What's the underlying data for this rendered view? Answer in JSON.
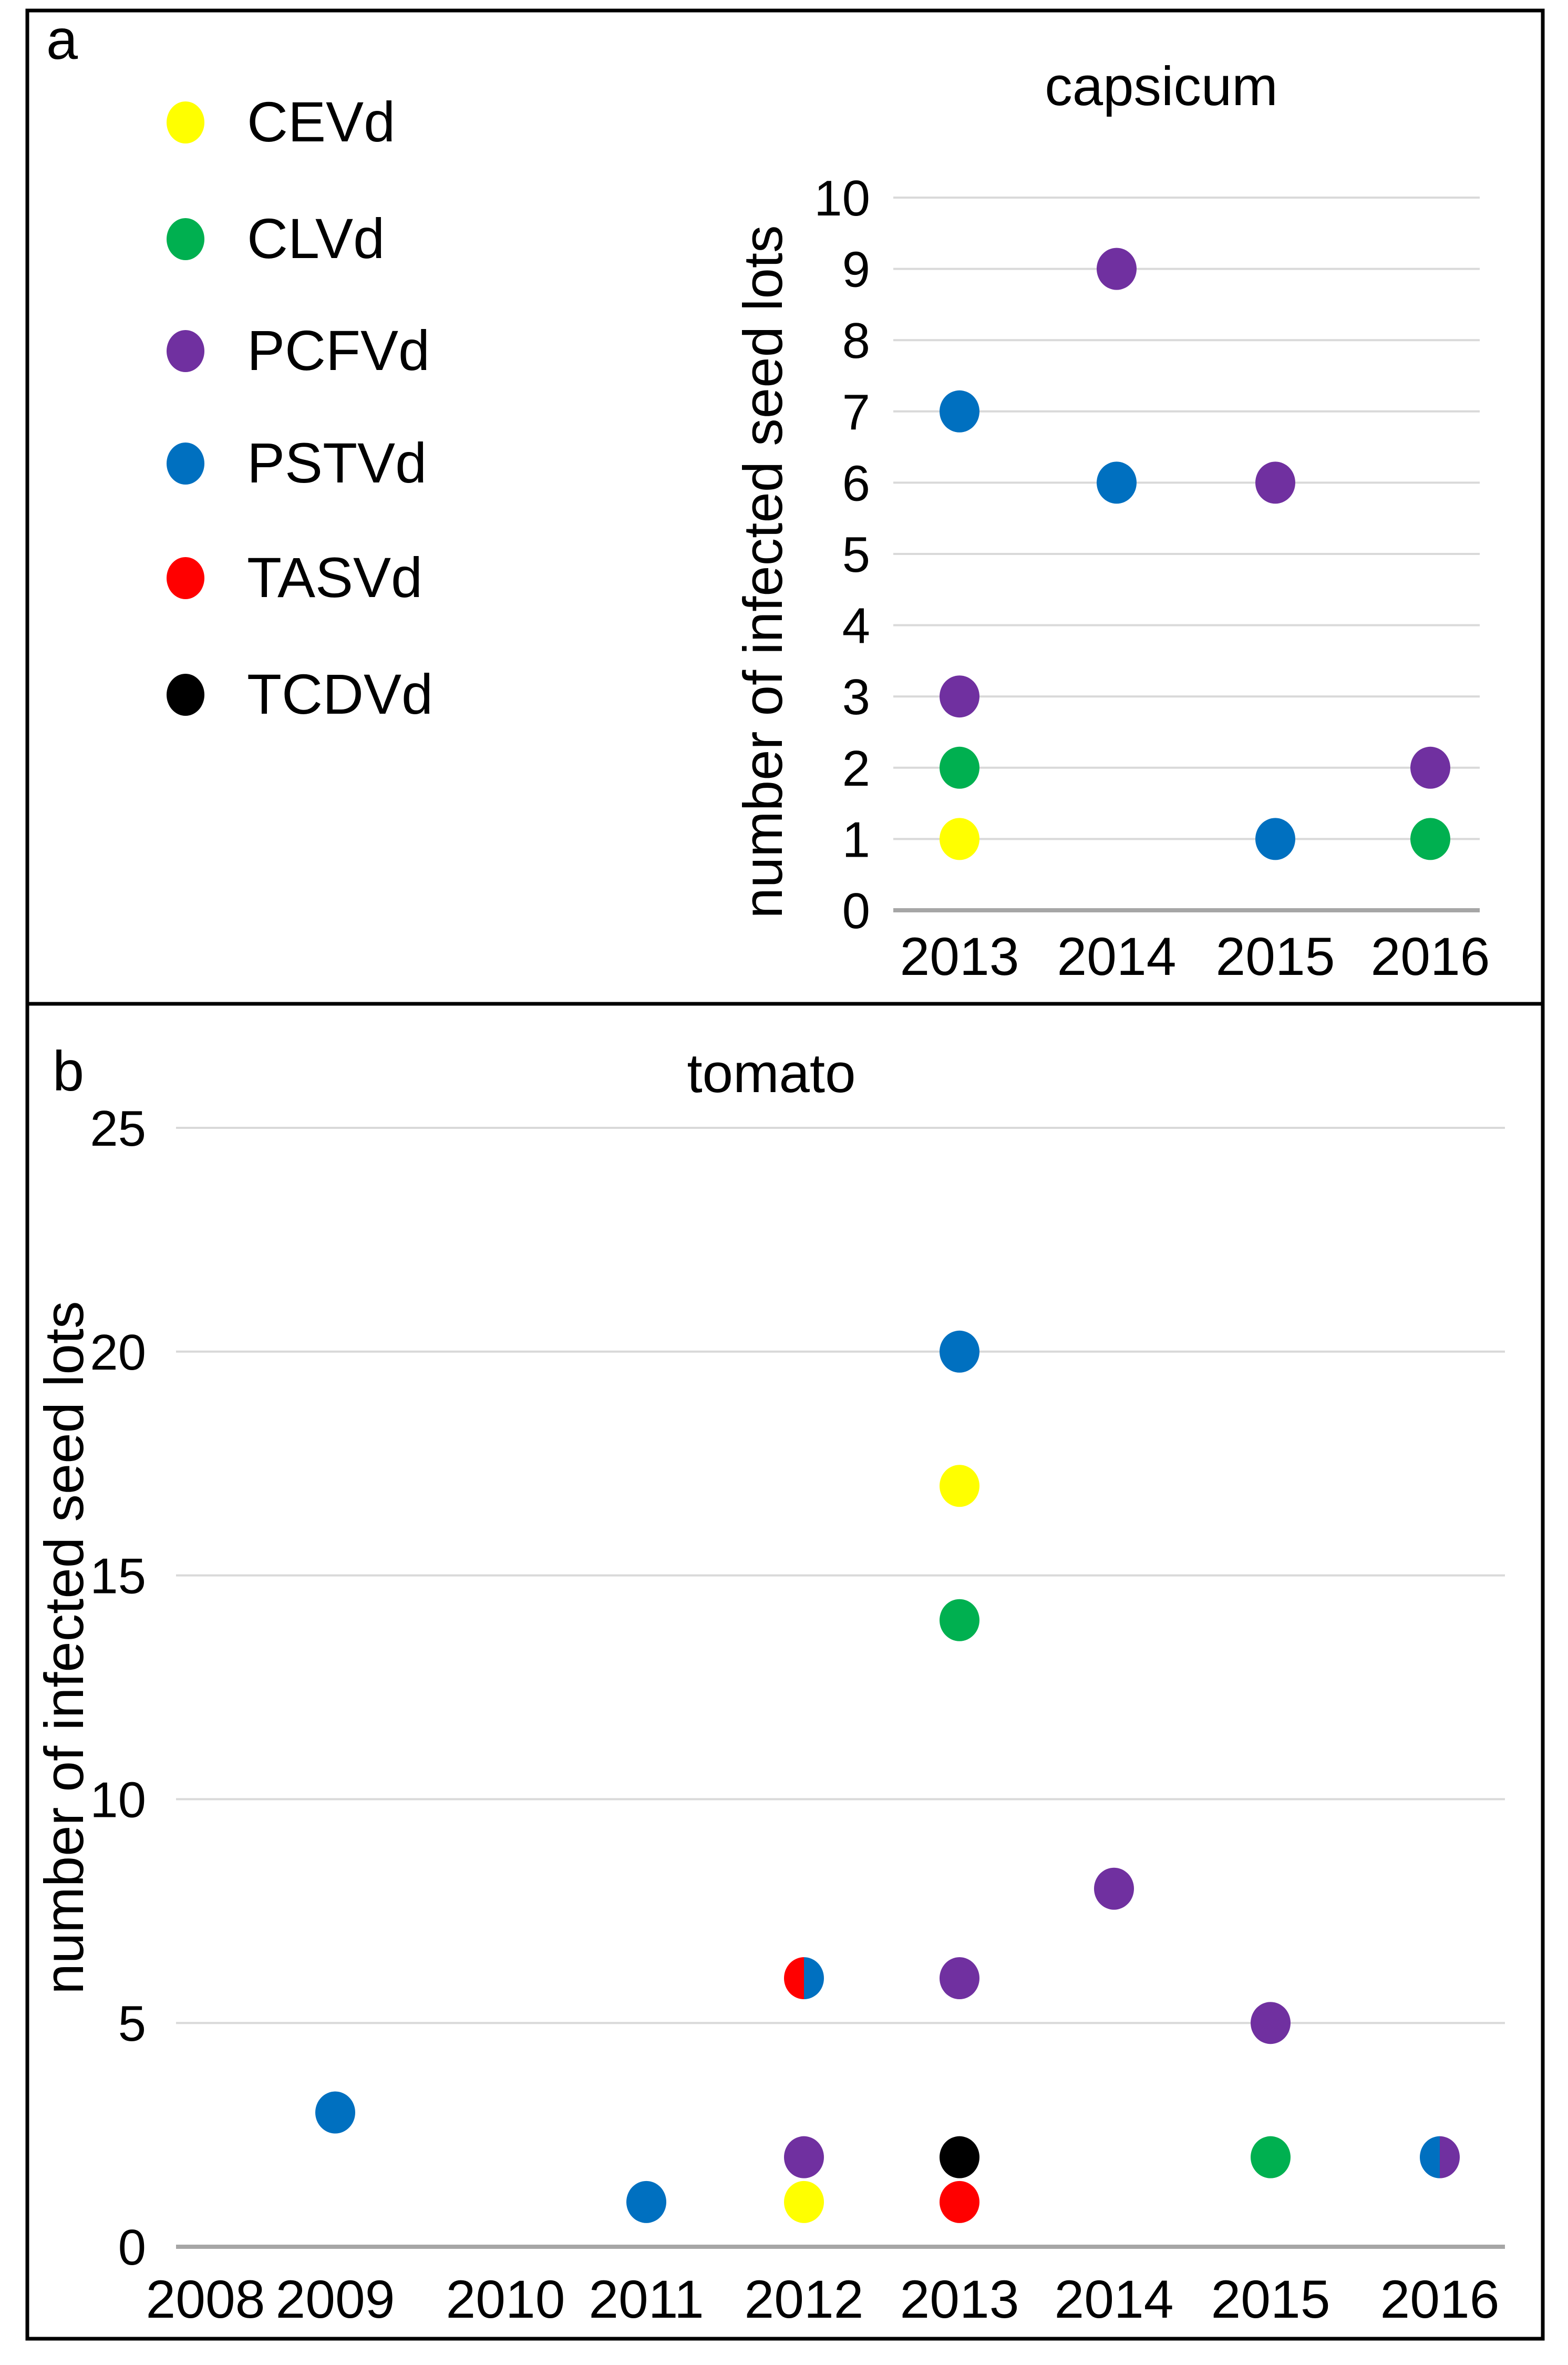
{
  "panels": {
    "a": {
      "label": "a"
    },
    "b": {
      "label": "b"
    }
  },
  "legend": [
    {
      "name": "CEVd",
      "color": "#ffff00"
    },
    {
      "name": "CLVd",
      "color": "#00b050"
    },
    {
      "name": "PCFVd",
      "color": "#7030a0"
    },
    {
      "name": "PSTVd",
      "color": "#0070c0"
    },
    {
      "name": "TASVd",
      "color": "#ff0000"
    },
    {
      "name": "TCDVd",
      "color": "#000000"
    }
  ],
  "chart_data": [
    {
      "type": "scatter",
      "title": "capsicum",
      "xlabel": "",
      "ylabel": "number of infected seed lots",
      "categories": [
        "2013",
        "2014",
        "2015",
        "2016"
      ],
      "yticks": [
        0,
        1,
        2,
        3,
        4,
        5,
        6,
        7,
        8,
        9,
        10
      ],
      "ylim": [
        0,
        10
      ],
      "grid": true,
      "points": [
        {
          "x": "2013",
          "y": 1,
          "series": "CEVd"
        },
        {
          "x": "2013",
          "y": 2,
          "series": "CLVd"
        },
        {
          "x": "2013",
          "y": 3,
          "series": "PCFVd"
        },
        {
          "x": "2013",
          "y": 7,
          "series": "PSTVd"
        },
        {
          "x": "2014",
          "y": 9,
          "series": "PCFVd"
        },
        {
          "x": "2014",
          "y": 6,
          "series": "PSTVd"
        },
        {
          "x": "2015",
          "y": 6,
          "series": "PCFVd"
        },
        {
          "x": "2015",
          "y": 1,
          "series": "PSTVd"
        },
        {
          "x": "2016",
          "y": 2,
          "series": "PCFVd"
        },
        {
          "x": "2016",
          "y": 1,
          "series": "CLVd"
        }
      ]
    },
    {
      "type": "scatter",
      "title": "tomato",
      "xlabel": "",
      "ylabel": "number of infected seed lots",
      "categories": [
        "2008",
        "2009",
        "2010",
        "2011",
        "2012",
        "2013",
        "2014",
        "2015",
        "2016"
      ],
      "yticks": [
        0,
        5,
        10,
        15,
        20,
        25
      ],
      "ylim": [
        0,
        25
      ],
      "grid": true,
      "points": [
        {
          "x": "2009",
          "y": 3,
          "series": "PSTVd"
        },
        {
          "x": "2011",
          "y": 1,
          "series": "PSTVd"
        },
        {
          "x": "2012",
          "y": 1,
          "series": "CEVd"
        },
        {
          "x": "2012",
          "y": 2,
          "series": "PCFVd"
        },
        {
          "x": "2012",
          "y": 6,
          "series": "TASVd",
          "series2": "PSTVd"
        },
        {
          "x": "2013",
          "y": 1,
          "series": "TASVd"
        },
        {
          "x": "2013",
          "y": 2,
          "series": "TCDVd"
        },
        {
          "x": "2013",
          "y": 6,
          "series": "PCFVd"
        },
        {
          "x": "2013",
          "y": 14,
          "series": "CLVd"
        },
        {
          "x": "2013",
          "y": 17,
          "series": "CEVd"
        },
        {
          "x": "2013",
          "y": 20,
          "series": "PSTVd"
        },
        {
          "x": "2014",
          "y": 8,
          "series": "PCFVd"
        },
        {
          "x": "2015",
          "y": 2,
          "series": "CLVd"
        },
        {
          "x": "2015",
          "y": 5,
          "series": "PCFVd"
        },
        {
          "x": "2016",
          "y": 2,
          "series": "PSTVd",
          "series2": "PCFVd"
        }
      ]
    }
  ]
}
